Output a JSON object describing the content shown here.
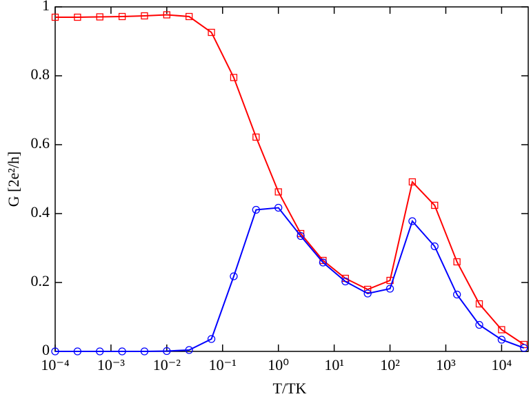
{
  "chart_data": {
    "type": "line",
    "xlabel": "T/TK",
    "ylabel": "G [2e²/h]",
    "xscale": "log",
    "x": [
      0.0001,
      0.0002512,
      0.000631,
      0.001585,
      0.003981,
      0.01,
      0.02512,
      0.0631,
      0.1585,
      0.3981,
      1,
      2.512,
      6.31,
      15.85,
      39.81,
      100,
      251.2,
      631,
      1585,
      3981,
      10000,
      25120
    ],
    "series": [
      {
        "name": "red",
        "color": "#ff0000",
        "marker": "square",
        "values": [
          0.97,
          0.97,
          0.971,
          0.972,
          0.974,
          0.977,
          0.972,
          0.926,
          0.795,
          0.622,
          0.463,
          0.342,
          0.264,
          0.212,
          0.18,
          0.206,
          0.492,
          0.424,
          0.26,
          0.138,
          0.063,
          0.02
        ]
      },
      {
        "name": "blue",
        "color": "#0000ff",
        "marker": "circle",
        "values": [
          0,
          0,
          0,
          0,
          0,
          0.001,
          0.004,
          0.036,
          0.218,
          0.411,
          0.417,
          0.335,
          0.258,
          0.203,
          0.168,
          0.182,
          0.378,
          0.305,
          0.165,
          0.077,
          0.034,
          0.01
        ]
      }
    ],
    "xlim": [
      0.0001,
      30000
    ],
    "xticks": [
      {
        "value": 0.0001,
        "label": "10⁻⁴"
      },
      {
        "value": 0.001,
        "label": "10⁻³"
      },
      {
        "value": 0.01,
        "label": "10⁻²"
      },
      {
        "value": 0.1,
        "label": "10⁻¹"
      },
      {
        "value": 1,
        "label": "10⁰"
      },
      {
        "value": 10,
        "label": "10¹"
      },
      {
        "value": 100,
        "label": "10²"
      },
      {
        "value": 1000,
        "label": "10³"
      },
      {
        "value": 10000,
        "label": "10⁴"
      }
    ],
    "ylim": [
      0,
      1
    ],
    "yticks": [
      0,
      0.2,
      0.4,
      0.6,
      0.8,
      1
    ]
  }
}
